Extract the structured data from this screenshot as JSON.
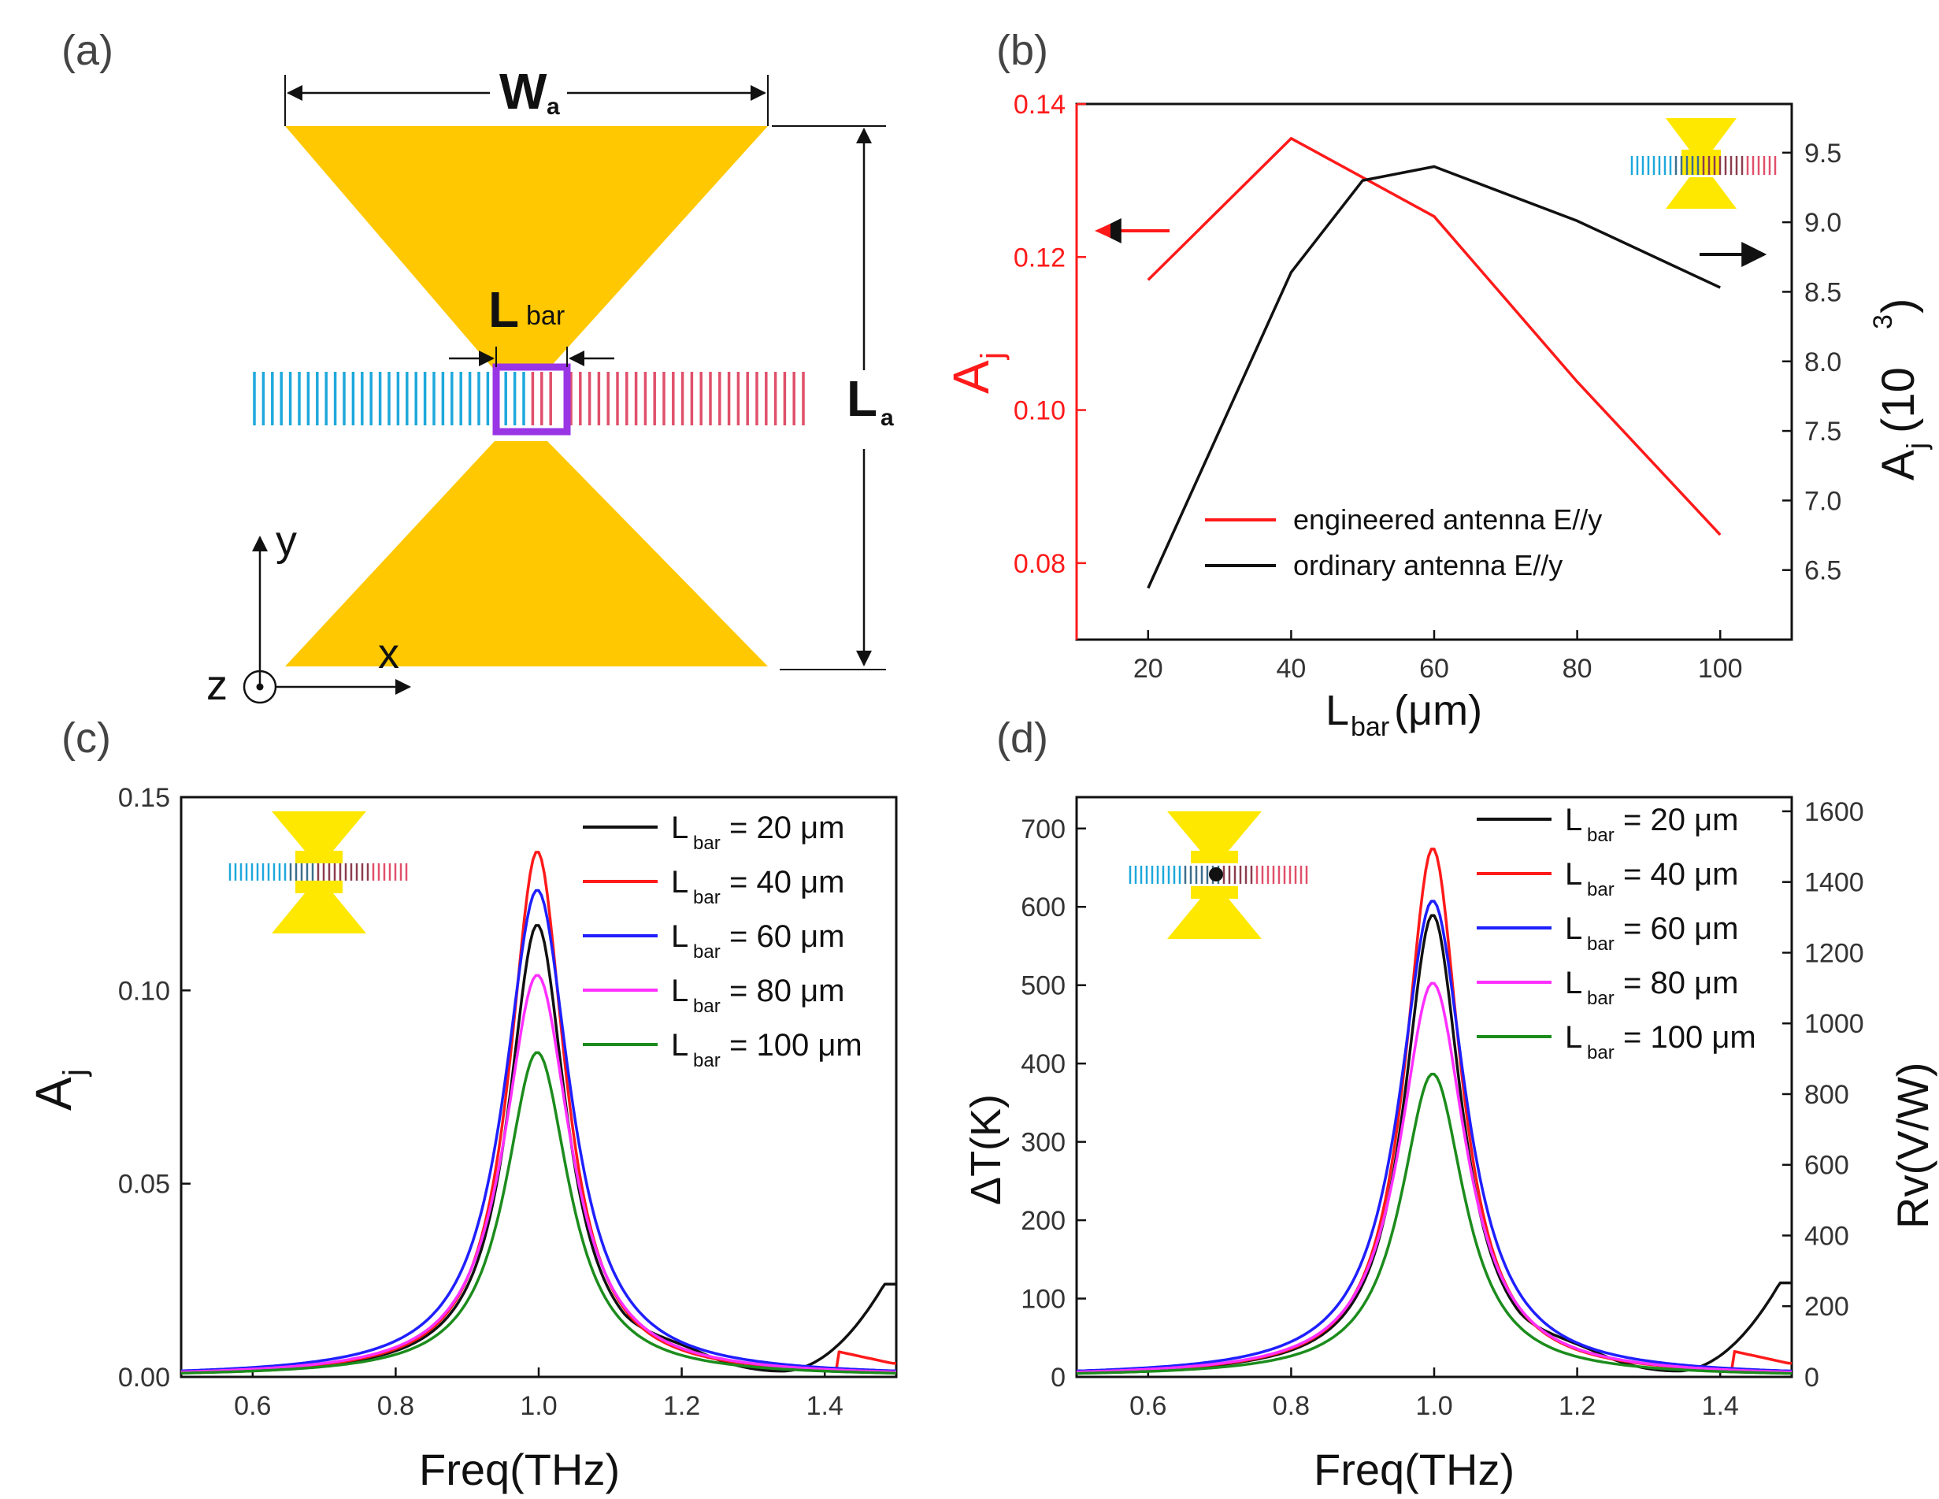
{
  "colors": {
    "gold": "#FFC800",
    "yellow": "#FFE800",
    "cyan": "#1EA8DC",
    "red_stripe": "#E0506A",
    "purple": "#9A35E6",
    "red": "#FF1A1A",
    "black": "#111111",
    "blue": "#1F1FFF",
    "magenta": "#FF30FF",
    "green": "#1C8C1C"
  },
  "panel_a": {
    "label": "(a)",
    "wa_main": "W",
    "wa_sub": "a",
    "la_main": "L",
    "la_sub": "a",
    "lbar_main": "L",
    "lbar_sub": "bar",
    "axis_x": "x",
    "axis_y": "y",
    "axis_z": "z"
  },
  "chart_data": [
    {
      "id": "b",
      "type": "line",
      "label": "(b)",
      "xlabel_main": "L",
      "xlabel_sub": "bar",
      "xlabel_tail": "(μm)",
      "ylabel_main": "A",
      "ylabel_sub": "j",
      "y2label_main": "A",
      "y2label_sub": "j",
      "y2label_tail": "(10",
      "y2label_sup": "3",
      "y2label_close": ")",
      "xlim": [
        10,
        110
      ],
      "ylim": [
        0.07,
        0.14
      ],
      "y2lim": [
        6.0,
        9.85
      ],
      "xticks": [
        "20",
        "40",
        "60",
        "80",
        "100"
      ],
      "yticks": [
        "0.08",
        "0.10",
        "0.12",
        "0.14"
      ],
      "y2ticks": [
        "6.5",
        "7.0",
        "7.5",
        "8.0",
        "8.5",
        "9.0",
        "9.5"
      ],
      "series": [
        {
          "name": "engineered antenna E//y",
          "axis": "left",
          "color": "#FF1A1A",
          "x": [
            20,
            40,
            60,
            80,
            100
          ],
          "y": [
            0.117,
            0.1355,
            0.1253,
            0.1037,
            0.0837
          ]
        },
        {
          "name": "ordinary antenna E//y",
          "axis": "right",
          "color": "#111111",
          "x": [
            20,
            40,
            50,
            60,
            80,
            100
          ],
          "y": [
            6.37,
            8.64,
            9.3,
            9.4,
            9.01,
            8.53
          ]
        }
      ]
    },
    {
      "id": "c",
      "type": "line",
      "label": "(c)",
      "xlabel": "Freq(THz)",
      "ylabel_main": "A",
      "ylabel_sub": "j",
      "xlim": [
        0.5,
        1.5
      ],
      "ylim": [
        0,
        0.15
      ],
      "xticks": [
        "0.6",
        "0.8",
        "1.0",
        "1.2",
        "1.4"
      ],
      "yticks": [
        "0.00",
        "0.05",
        "0.10",
        "0.15"
      ],
      "series": [
        {
          "name_main": "L",
          "name_sub": "bar",
          "name_tail": " = 20 μm",
          "color": "#111111",
          "peak": 0.117,
          "hw": 0.049,
          "tail": "black"
        },
        {
          "name_main": "L",
          "name_sub": "bar",
          "name_tail": " = 40 μm",
          "color": "#FF1A1A",
          "peak": 0.136,
          "hw": 0.047,
          "tail": "red"
        },
        {
          "name_main": "L",
          "name_sub": "bar",
          "name_tail": " = 60 μm",
          "color": "#1F1FFF",
          "peak": 0.126,
          "hw": 0.056,
          "tail": "blue"
        },
        {
          "name_main": "L",
          "name_sub": "bar",
          "name_tail": " = 80 μm",
          "color": "#FF30FF",
          "peak": 0.104,
          "hw": 0.056,
          "tail": "magenta"
        },
        {
          "name_main": "L",
          "name_sub": "bar",
          "name_tail": " = 100 μm",
          "color": "#1C8C1C",
          "peak": 0.084,
          "hw": 0.054,
          "tail": "green"
        }
      ]
    },
    {
      "id": "d",
      "type": "line",
      "label": "(d)",
      "xlabel": "Freq(THz)",
      "ylabel": "ΔT(K)",
      "y2label": "Rv(V/W)",
      "xlim": [
        0.5,
        1.5
      ],
      "ylim": [
        0,
        740
      ],
      "y2lim": [
        0,
        1640
      ],
      "xticks": [
        "0.6",
        "0.8",
        "1.0",
        "1.2",
        "1.4"
      ],
      "yticks": [
        "0",
        "100",
        "200",
        "300",
        "400",
        "500",
        "600",
        "700"
      ],
      "y2ticks": [
        "0",
        "200",
        "400",
        "600",
        "800",
        "1000",
        "1200",
        "1400",
        "1600"
      ],
      "series": [
        {
          "name_main": "L",
          "name_sub": "bar",
          "name_tail": " = 20 μm",
          "color": "#111111",
          "peak": 590,
          "hw": 0.049,
          "tail": "black"
        },
        {
          "name_main": "L",
          "name_sub": "bar",
          "name_tail": " = 40 μm",
          "color": "#FF1A1A",
          "peak": 675,
          "hw": 0.047,
          "tail": "red"
        },
        {
          "name_main": "L",
          "name_sub": "bar",
          "name_tail": " = 60 μm",
          "color": "#1F1FFF",
          "peak": 608,
          "hw": 0.056,
          "tail": "blue"
        },
        {
          "name_main": "L",
          "name_sub": "bar",
          "name_tail": " = 80 μm",
          "color": "#FF30FF",
          "peak": 503,
          "hw": 0.056,
          "tail": "magenta"
        },
        {
          "name_main": "L",
          "name_sub": "bar",
          "name_tail": " = 100 μm",
          "color": "#1C8C1C",
          "peak": 387,
          "hw": 0.054,
          "tail": "green"
        }
      ]
    }
  ]
}
